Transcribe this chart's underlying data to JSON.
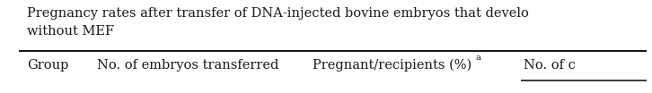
{
  "title_line1": "Pregnancy rates after transfer of DNA-injected bovine embryos that develo",
  "title_line2": "without MEF",
  "col1": "Group",
  "col2": "No. of embryos transferred",
  "col3": "Pregnant/recipients (%)",
  "col3_superscript": "a",
  "col4": "No. of c",
  "bg_color": "#ffffff",
  "text_color": "#1a1a1a",
  "title_fontsize": 10.5,
  "header_fontsize": 10.5,
  "line_color": "#1a1a1a",
  "fig_width": 7.26,
  "fig_height": 1.04,
  "dpi": 100
}
